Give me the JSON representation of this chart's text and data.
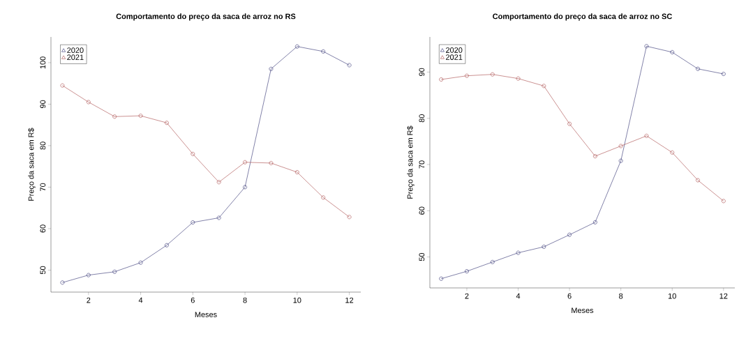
{
  "chart_data": [
    {
      "type": "line",
      "title": "Comportamento do preço da saca de arroz no RS",
      "xlabel": "Meses",
      "ylabel": "Preço da saca em R$",
      "x": [
        1,
        2,
        3,
        4,
        5,
        6,
        7,
        8,
        9,
        10,
        11,
        12
      ],
      "series": [
        {
          "name": "2020",
          "color": "#2e2e6e",
          "values": [
            47.0,
            48.8,
            49.6,
            51.8,
            56.0,
            61.5,
            62.6,
            70.0,
            98.5,
            103.9,
            102.7,
            99.4
          ]
        },
        {
          "name": "2021",
          "color": "#a84848",
          "values": [
            94.5,
            90.5,
            87.0,
            87.2,
            85.5,
            78.0,
            71.2,
            76.0,
            75.8,
            73.6,
            67.5,
            62.8
          ]
        }
      ],
      "xlim": [
        0.56,
        12.44
      ],
      "ylim": [
        44.7,
        106.2
      ],
      "xticks": [
        2,
        4,
        6,
        8,
        10,
        12
      ],
      "yticks": [
        50,
        60,
        70,
        80,
        90,
        100
      ],
      "legend": "top left",
      "marker": "circle"
    },
    {
      "type": "line",
      "title": "Comportamento do preço da saca de arroz no SC",
      "xlabel": "Meses",
      "ylabel": "Preço da saca em R$",
      "x": [
        1,
        2,
        3,
        4,
        5,
        6,
        7,
        8,
        9,
        10,
        11,
        12
      ],
      "series": [
        {
          "name": "2020",
          "color": "#2e2e6e",
          "values": [
            45.3,
            46.9,
            48.9,
            50.9,
            52.2,
            54.8,
            57.5,
            70.8,
            95.6,
            94.3,
            90.7,
            89.6
          ]
        },
        {
          "name": "2021",
          "color": "#a84848",
          "values": [
            88.4,
            89.2,
            89.5,
            88.6,
            87.0,
            78.8,
            71.8,
            74.0,
            76.2,
            72.6,
            66.6,
            62.1
          ]
        }
      ],
      "xlim": [
        0.56,
        12.44
      ],
      "ylim": [
        43.3,
        97.6
      ],
      "xticks": [
        2,
        4,
        6,
        8,
        10,
        12
      ],
      "yticks": [
        50,
        60,
        70,
        80,
        90
      ],
      "legend": "top left",
      "marker": "circle"
    }
  ]
}
